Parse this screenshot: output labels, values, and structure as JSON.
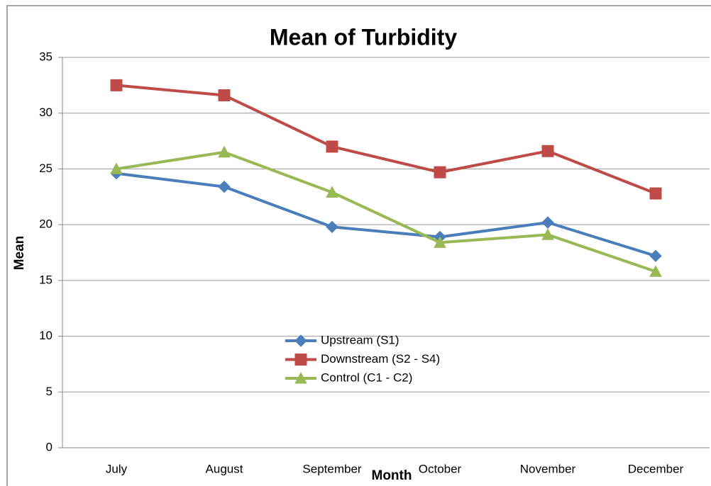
{
  "chart_data": {
    "type": "line",
    "title": "Mean of Turbidity",
    "x_label": "Month",
    "y_label": "Mean",
    "categories": [
      "July",
      "August",
      "September",
      "October",
      "November",
      "December"
    ],
    "series": [
      {
        "name": "Upstream (S1)",
        "color": "#4a7ebb",
        "marker": "diamond",
        "values": [
          24.6,
          23.4,
          19.8,
          18.9,
          20.2,
          17.2
        ]
      },
      {
        "name": "Downstream (S2 - S4)",
        "color": "#be4b48",
        "marker": "square",
        "values": [
          32.5,
          31.6,
          27.0,
          24.7,
          26.6,
          22.8
        ]
      },
      {
        "name": "Control (C1 - C2)",
        "color": "#98b954",
        "marker": "triangle",
        "values": [
          25.0,
          26.5,
          22.9,
          18.4,
          19.1,
          15.8
        ]
      }
    ],
    "ylim": [
      0,
      35
    ],
    "yticks": [
      0,
      5,
      10,
      15,
      20,
      25,
      30,
      35
    ],
    "grid": true,
    "legend": "center"
  }
}
